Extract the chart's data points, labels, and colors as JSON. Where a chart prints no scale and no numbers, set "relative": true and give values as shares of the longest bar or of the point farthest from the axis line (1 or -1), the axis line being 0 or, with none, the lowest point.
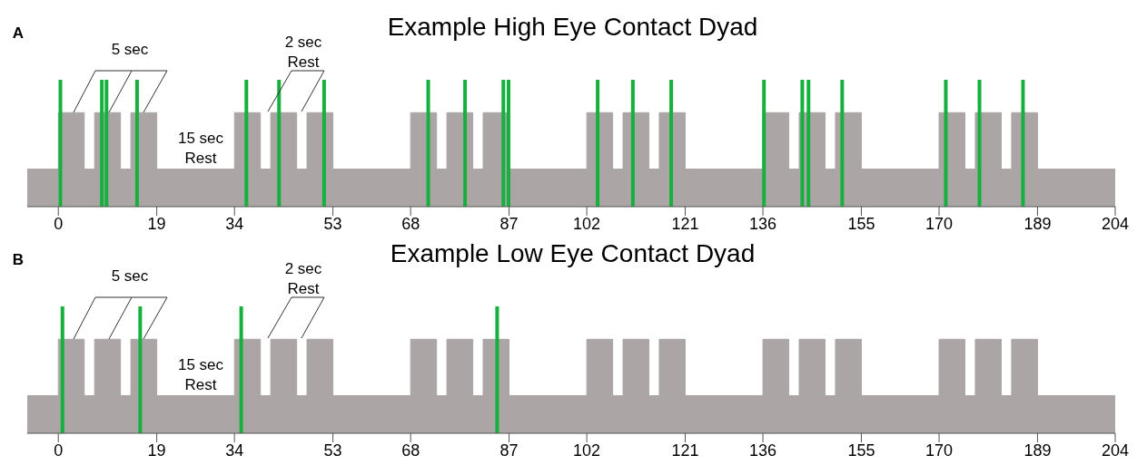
{
  "chart_data": [
    {
      "type": "area",
      "relative": true,
      "title": "Example High Eye Contact Dyad",
      "annotations": [
        "A",
        "5 sec",
        "2 sec Rest",
        "15 sec Rest"
      ],
      "xlim": [
        -6,
        204
      ],
      "xticks": [
        0,
        19,
        34,
        53,
        68,
        87,
        102,
        121,
        136,
        155,
        170,
        189,
        204
      ],
      "x": [
        -6,
        0,
        0,
        5,
        5,
        7,
        7,
        12,
        12,
        14,
        14,
        19,
        19,
        34,
        34,
        39,
        39,
        41,
        41,
        46,
        46,
        48,
        48,
        53,
        53,
        68,
        68,
        73,
        73,
        75,
        75,
        80,
        80,
        82,
        82,
        87,
        87,
        102,
        102,
        107,
        107,
        109,
        109,
        114,
        114,
        116,
        116,
        121,
        121,
        136,
        136,
        141,
        141,
        143,
        143,
        148,
        148,
        150,
        150,
        155,
        155,
        170,
        170,
        175,
        175,
        177,
        177,
        182,
        182,
        184,
        184,
        189,
        189,
        204
      ],
      "series": [
        {
          "color": "#aba6a5",
          "values": [
            0.4,
            0.4,
            1,
            1,
            0.4,
            0.4,
            1,
            1,
            0.4,
            0.4,
            1,
            1,
            0.4,
            0.4,
            1,
            1,
            0.4,
            0.4,
            1,
            1,
            0.4,
            0.4,
            1,
            1,
            0.4,
            0.4,
            1,
            1,
            0.4,
            0.4,
            1,
            1,
            0.4,
            0.4,
            1,
            1,
            0.4,
            0.4,
            1,
            1,
            0.4,
            0.4,
            1,
            1,
            0.4,
            0.4,
            1,
            1,
            0.4,
            0.4,
            1,
            1,
            0.4,
            0.4,
            1,
            1,
            0.4,
            0.4,
            1,
            1,
            0.4,
            0.4,
            1,
            1,
            0.4,
            0.4,
            1,
            1,
            0.4,
            0.4,
            1,
            1,
            0.4,
            0.4
          ]
        }
      ],
      "ref_lines": [
        {
          "axis": "x",
          "value": 0.4,
          "color": "#16b03e"
        },
        {
          "axis": "x",
          "value": 8.4,
          "color": "#16b03e"
        },
        {
          "axis": "x",
          "value": 9.3,
          "color": "#16b03e"
        },
        {
          "axis": "x",
          "value": 15.2,
          "color": "#16b03e"
        },
        {
          "axis": "x",
          "value": 36.3,
          "color": "#16b03e"
        },
        {
          "axis": "x",
          "value": 42.6,
          "color": "#16b03e"
        },
        {
          "axis": "x",
          "value": 51.3,
          "color": "#16b03e"
        },
        {
          "axis": "x",
          "value": 71.4,
          "color": "#16b03e"
        },
        {
          "axis": "x",
          "value": 78.5,
          "color": "#16b03e"
        },
        {
          "axis": "x",
          "value": 85.9,
          "color": "#16b03e"
        },
        {
          "axis": "x",
          "value": 86.9,
          "color": "#16b03e"
        },
        {
          "axis": "x",
          "value": 104.1,
          "color": "#16b03e"
        },
        {
          "axis": "x",
          "value": 110.9,
          "color": "#16b03e"
        },
        {
          "axis": "x",
          "value": 118.3,
          "color": "#16b03e"
        },
        {
          "axis": "x",
          "value": 136.2,
          "color": "#16b03e"
        },
        {
          "axis": "x",
          "value": 143.6,
          "color": "#16b03e"
        },
        {
          "axis": "x",
          "value": 144.8,
          "color": "#16b03e"
        },
        {
          "axis": "x",
          "value": 151.3,
          "color": "#16b03e"
        },
        {
          "axis": "x",
          "value": 171.3,
          "color": "#16b03e"
        },
        {
          "axis": "x",
          "value": 177.8,
          "color": "#16b03e"
        },
        {
          "axis": "x",
          "value": 186.2,
          "color": "#16b03e"
        }
      ]
    },
    {
      "type": "area",
      "relative": true,
      "title": "Example Low Eye Contact Dyad",
      "annotations": [
        "B",
        "5 sec",
        "2 sec Rest",
        "15 sec Rest"
      ],
      "xlim": [
        -6,
        204
      ],
      "xticks": [
        0,
        19,
        34,
        53,
        68,
        87,
        102,
        121,
        136,
        155,
        170,
        189,
        204
      ],
      "x": [
        -6,
        0,
        0,
        5,
        5,
        7,
        7,
        12,
        12,
        14,
        14,
        19,
        19,
        34,
        34,
        39,
        39,
        41,
        41,
        46,
        46,
        48,
        48,
        53,
        53,
        68,
        68,
        73,
        73,
        75,
        75,
        80,
        80,
        82,
        82,
        87,
        87,
        102,
        102,
        107,
        107,
        109,
        109,
        114,
        114,
        116,
        116,
        121,
        121,
        136,
        136,
        141,
        141,
        143,
        143,
        148,
        148,
        150,
        150,
        155,
        155,
        170,
        170,
        175,
        175,
        177,
        177,
        182,
        182,
        184,
        184,
        189,
        189,
        204
      ],
      "series": [
        {
          "color": "#aba6a5",
          "values": [
            0.4,
            0.4,
            1,
            1,
            0.4,
            0.4,
            1,
            1,
            0.4,
            0.4,
            1,
            1,
            0.4,
            0.4,
            1,
            1,
            0.4,
            0.4,
            1,
            1,
            0.4,
            0.4,
            1,
            1,
            0.4,
            0.4,
            1,
            1,
            0.4,
            0.4,
            1,
            1,
            0.4,
            0.4,
            1,
            1,
            0.4,
            0.4,
            1,
            1,
            0.4,
            0.4,
            1,
            1,
            0.4,
            0.4,
            1,
            1,
            0.4,
            0.4,
            1,
            1,
            0.4,
            0.4,
            1,
            1,
            0.4,
            0.4,
            1,
            1,
            0.4,
            0.4,
            1,
            1,
            0.4,
            0.4,
            1,
            1,
            0.4,
            0.4,
            1,
            1,
            0.4,
            0.4
          ]
        }
      ],
      "ref_lines": [
        {
          "axis": "x",
          "value": 0.8,
          "color": "#16b03e"
        },
        {
          "axis": "x",
          "value": 15.8,
          "color": "#16b03e"
        },
        {
          "axis": "x",
          "value": 35.3,
          "color": "#16b03e"
        },
        {
          "axis": "x",
          "value": 84.7,
          "color": "#16b03e"
        }
      ]
    }
  ]
}
